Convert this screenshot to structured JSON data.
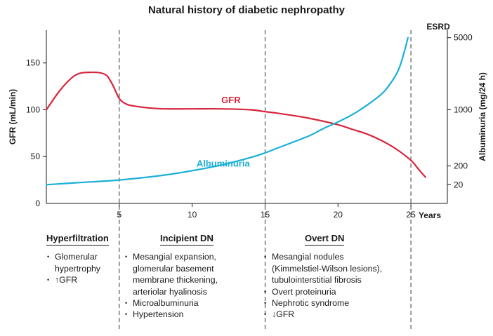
{
  "chart_data": {
    "type": "line",
    "title": "Natural history of diabetic nephropathy",
    "xlabel": "Years",
    "ylabel_left": "GFR (mL/min)",
    "ylabel_right": "Albuminuria (mg/24 h)",
    "xlim": [
      0,
      27.5
    ],
    "ylim_left": [
      0,
      185
    ],
    "x_ticks": [
      5,
      10,
      15,
      20,
      25
    ],
    "y_ticks_left": [
      0,
      50,
      100,
      150
    ],
    "y_ticks_right": [
      {
        "label": "20",
        "gfr_equiv": 20
      },
      {
        "label": "200",
        "gfr_equiv": 40
      },
      {
        "label": "1000",
        "gfr_equiv": 100
      },
      {
        "label": "5000",
        "gfr_equiv": 177
      }
    ],
    "stage_boundaries": [
      5,
      15,
      25
    ],
    "end_label": "ESRD",
    "series": [
      {
        "name": "GFR",
        "axis": "left",
        "color": "#d7263d",
        "x": [
          0,
          1,
          2,
          3,
          4,
          4.5,
          5,
          5.5,
          6,
          7,
          8,
          10,
          12,
          14,
          15,
          16,
          18,
          20,
          21,
          22,
          23,
          24,
          25,
          25.5,
          26
        ],
        "y": [
          100,
          122,
          137,
          140,
          138,
          128,
          112,
          106,
          104,
          102,
          101,
          101,
          101,
          100,
          98,
          96,
          91,
          84,
          79,
          74,
          67,
          58,
          46,
          37,
          28
        ]
      },
      {
        "name": "Albuminuria",
        "axis": "right",
        "color": "#1ab0d6",
        "x": [
          0,
          2,
          5,
          8,
          10,
          12,
          14,
          15,
          16,
          18,
          19,
          20,
          21,
          22,
          23,
          23.5,
          24,
          24.3,
          24.6,
          24.8
        ],
        "y": [
          20,
          22,
          25,
          30,
          35,
          41,
          49,
          54,
          60,
          72,
          80,
          87,
          95,
          105,
          117,
          126,
          138,
          149,
          165,
          177
        ]
      }
    ]
  },
  "stages": [
    {
      "title": "Hyperfiltration",
      "items": [
        "Glomerular hypertrophy"
      ],
      "gfr_item": {
        "arrow": "↑",
        "text": "GFR"
      }
    },
    {
      "title": "Incipient DN",
      "items": [
        "Mesangial expansion, glomerular basement membrane thickening, arteriolar hyalinosis",
        "Microalbuminuria",
        "Hypertension"
      ]
    },
    {
      "title": "Overt DN",
      "items": [
        "Mesangial nodules (Kimmelstiel-Wilson lesions), tubulointerstitial fibrosis",
        "Overt proteinuria",
        "Nephrotic syndrome"
      ],
      "gfr_item": {
        "arrow": "↓",
        "text": "GFR"
      }
    }
  ]
}
